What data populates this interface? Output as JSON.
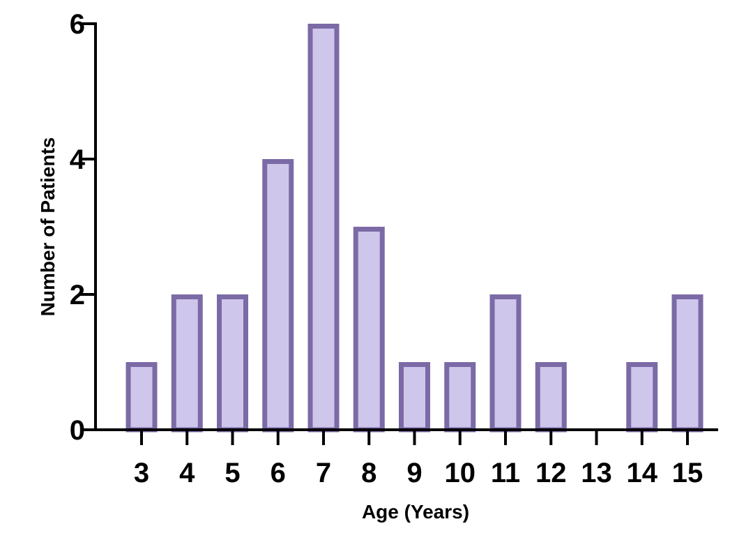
{
  "chart_data": {
    "type": "bar",
    "title": "",
    "xlabel": "Age (Years)",
    "ylabel": "Number of Patients",
    "categories": [
      "3",
      "4",
      "5",
      "6",
      "7",
      "8",
      "9",
      "10",
      "11",
      "12",
      "13",
      "14",
      "15"
    ],
    "values": [
      1,
      2,
      2,
      4,
      6,
      3,
      1,
      1,
      2,
      1,
      0,
      1,
      2
    ],
    "ylim": [
      0,
      6
    ],
    "yticks": [
      "0",
      "2",
      "4",
      "6"
    ],
    "grid": false,
    "legend": "none",
    "colors": {
      "bar_fill": "#cfc6eb",
      "bar_stroke": "#7b6aa6",
      "axis": "#000000"
    }
  }
}
